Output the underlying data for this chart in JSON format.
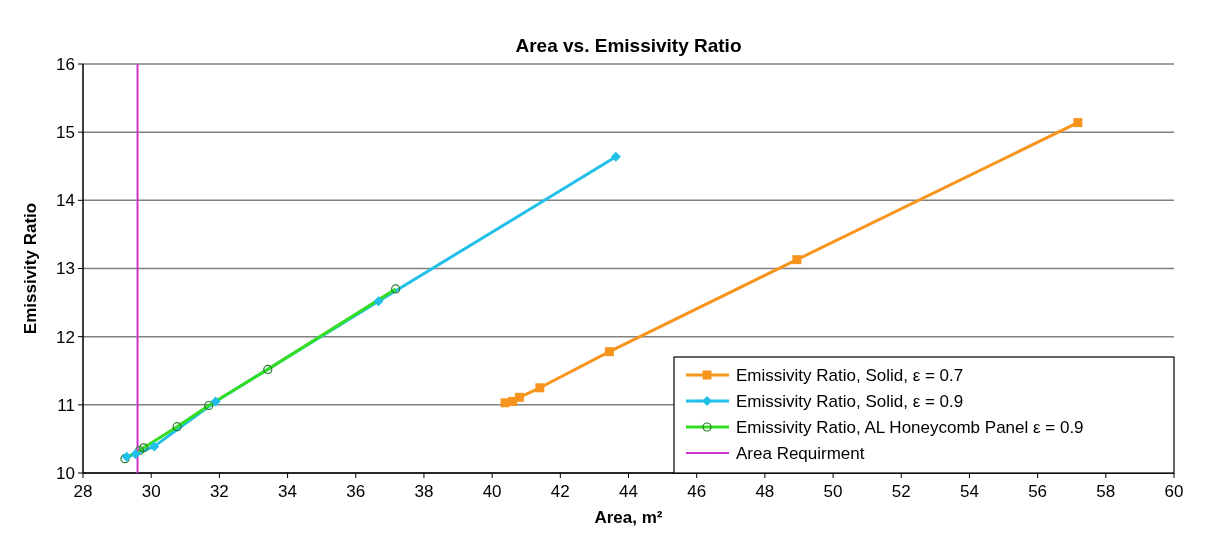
{
  "chart_data": {
    "type": "line",
    "title": "Area vs. Emissivity Ratio",
    "xlabel": "Area, m²",
    "ylabel": "Emissivity Ratio",
    "xlim": [
      28,
      60
    ],
    "xticks": [
      28,
      30,
      32,
      34,
      36,
      38,
      40,
      42,
      44,
      46,
      48,
      50,
      52,
      54,
      56,
      58,
      60
    ],
    "ylim": [
      10,
      16
    ],
    "yticks": [
      10,
      11,
      12,
      13,
      14,
      15,
      16
    ],
    "grid": "y",
    "legend": "bottom right",
    "series": [
      {
        "name": "Emissivity Ratio, Solid, ε = 0.7",
        "color": "#f7941d",
        "marker": "square",
        "x": [
          40.38,
          40.6,
          40.8,
          41.4,
          43.44,
          48.94,
          57.18
        ],
        "values": [
          11.03,
          11.05,
          11.11,
          11.25,
          11.78,
          13.13,
          15.14
        ]
      },
      {
        "name": "Emissivity Ratio, Solid, ε = 0.9",
        "color": "#22c0e8",
        "marker": "diamond",
        "x": [
          29.28,
          29.54,
          30.09,
          31.89,
          36.67,
          43.63
        ],
        "values": [
          10.24,
          10.28,
          10.39,
          11.05,
          12.52,
          14.64
        ]
      },
      {
        "name": "Emissivity Ratio, AL Honeycomb Panel ε = 0.9",
        "color": "#33dd22",
        "marker": "circle",
        "x": [
          29.23,
          29.66,
          29.78,
          30.76,
          31.69,
          33.42,
          37.17
        ],
        "values": [
          10.21,
          10.33,
          10.37,
          10.68,
          10.99,
          11.52,
          12.7
        ]
      },
      {
        "name": "Area Requirment",
        "color": "#cc33cc",
        "marker": "none",
        "x": [
          29.6,
          29.6
        ],
        "values": [
          10,
          16
        ]
      }
    ]
  }
}
